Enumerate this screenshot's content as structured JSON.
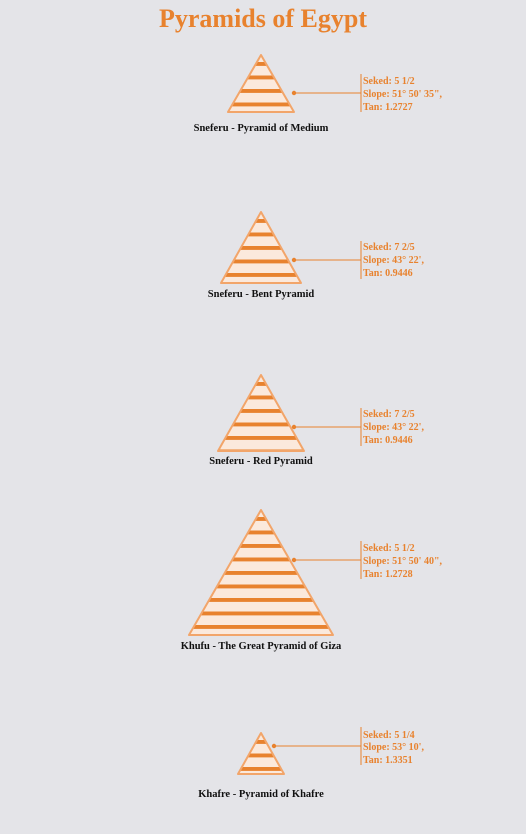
{
  "title": "Pyramids of Egypt",
  "colors": {
    "accent": "#e8822e",
    "stripe_light": "#fbe9dc",
    "background": "#e4e4e8",
    "label": "#111111"
  },
  "pyramids": [
    {
      "name": "Sneferu - Pyramid of Medium",
      "info": [
        "Seked: 5 1/2",
        "Slope: 51° 50' 35\",",
        "Tan: 1.2727"
      ]
    },
    {
      "name": "Sneferu - Bent Pyramid",
      "info": [
        "Seked: 7 2/5",
        "Slope: 43° 22',",
        "Tan: 0.9446"
      ]
    },
    {
      "name": "Sneferu - Red Pyramid",
      "info": [
        "Seked: 7 2/5",
        "Slope: 43° 22',",
        "Tan: 0.9446"
      ]
    },
    {
      "name": "Khufu - The Great Pyramid of Giza",
      "info": [
        "Seked: 5 1/2",
        "Slope: 51° 50' 40\",",
        "Tan: 1.2728"
      ]
    },
    {
      "name": "Khafre - Pyramid of Khafre",
      "info": [
        "Seked: 5 1/4",
        "Slope: 53° 10',",
        "Tan: 1.3351"
      ]
    }
  ]
}
